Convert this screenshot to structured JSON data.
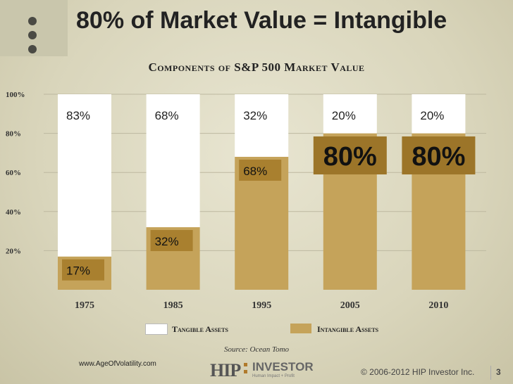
{
  "title": "80% of Market Value = Intangible",
  "subtitle": "Components of S&P 500 Market Value",
  "colors": {
    "tangible": "#ffffff",
    "intangible": "#c5a35a",
    "label_box": "#a9802f",
    "bold_box": "#9c7529"
  },
  "legend": {
    "tangible": "Tangible Assets",
    "intangible": "Intangible Assets"
  },
  "source": "Source: Ocean Tomo",
  "footer": {
    "url": "www.AgeOfVolatility.com",
    "logo_hip": "HIP",
    "logo_investor": "INVESTOR",
    "logo_tagline": "Human Impact + Profit",
    "copyright": "© 2006-2012 HIP Investor Inc.",
    "page": "3"
  },
  "chart_data": {
    "type": "bar",
    "stacked": true,
    "categories": [
      "1975",
      "1985",
      "1995",
      "2005",
      "2010"
    ],
    "series": [
      {
        "name": "Intangible Assets",
        "values": [
          17,
          32,
          68,
          80,
          80
        ],
        "labels": [
          "17%",
          "32%",
          "68%",
          "80%",
          "80%"
        ]
      },
      {
        "name": "Tangible Assets",
        "values": [
          83,
          68,
          32,
          20,
          20
        ],
        "labels": [
          "83%",
          "68%",
          "32%",
          "20%",
          "20%"
        ]
      }
    ],
    "y_ticks": [
      "20%",
      "40%",
      "60%",
      "80%",
      "100%"
    ],
    "ylim": [
      0,
      100
    ],
    "grid": true,
    "legend_position": "bottom"
  }
}
